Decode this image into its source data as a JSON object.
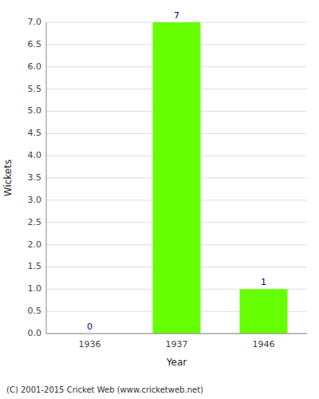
{
  "chart_data": {
    "type": "bar",
    "categories": [
      "1936",
      "1937",
      "1946"
    ],
    "values": [
      0,
      7,
      1
    ],
    "color": "#66ff00",
    "xlabel": "Year",
    "ylabel": "Wickets",
    "ylim": [
      0,
      7.0
    ],
    "yticks": [
      {
        "value": 0.0,
        "label": "0.0"
      },
      0.5,
      {
        "value": 1.0,
        "label": "1.0"
      },
      1.5,
      {
        "value": 2.0,
        "label": "2.0"
      },
      2.5,
      {
        "value": 3.0,
        "label": "3.0"
      },
      3.5,
      {
        "value": 4.0,
        "label": "4.0"
      },
      4.5,
      {
        "value": 5.0,
        "label": "5.0"
      },
      5.5,
      {
        "value": 6.0,
        "label": "6.0"
      },
      6.5,
      {
        "value": 7.0,
        "label": "7.0"
      }
    ],
    "grid": true,
    "data_labels": true,
    "annotations": [
      "(C) 2001-2015 Cricket Web (www.cricketweb.net)"
    ]
  }
}
